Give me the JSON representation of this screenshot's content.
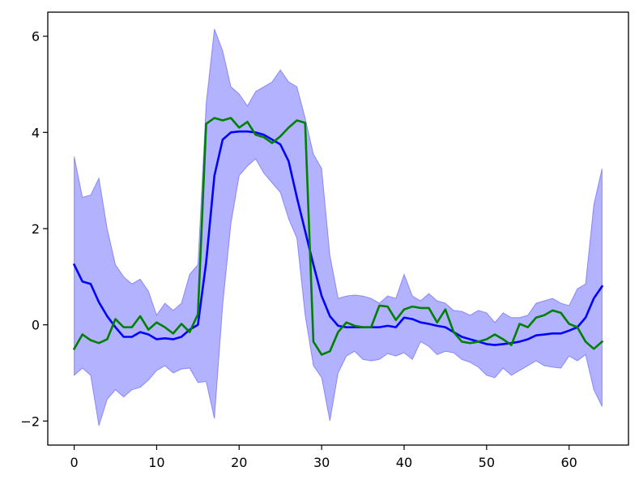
{
  "chart_data": {
    "type": "line",
    "title": "",
    "xlabel": "",
    "ylabel": "",
    "xlim": [
      -3.2,
      67.2
    ],
    "ylim": [
      -2.5,
      6.5
    ],
    "x_ticks": [
      0,
      10,
      20,
      30,
      40,
      50,
      60
    ],
    "y_ticks": [
      -2,
      0,
      2,
      4,
      6
    ],
    "x_tick_labels": [
      "0",
      "10",
      "20",
      "30",
      "40",
      "50",
      "60"
    ],
    "y_tick_labels": [
      "−2",
      "0",
      "2",
      "4",
      "6"
    ],
    "grid": false,
    "legend": "none",
    "band": {
      "color": "#0000ff",
      "alpha": 0.3,
      "upper": [
        3.5,
        2.65,
        2.7,
        3.05,
        2.0,
        1.25,
        1.0,
        0.85,
        0.95,
        0.7,
        0.2,
        0.45,
        0.3,
        0.45,
        1.05,
        1.25,
        4.6,
        6.15,
        5.7,
        4.95,
        4.8,
        4.55,
        4.85,
        4.95,
        5.05,
        5.3,
        5.05,
        4.95,
        4.3,
        3.55,
        3.25,
        1.45,
        0.55,
        0.6,
        0.62,
        0.6,
        0.55,
        0.45,
        0.6,
        0.55,
        1.05,
        0.6,
        0.5,
        0.65,
        0.5,
        0.45,
        0.3,
        0.28,
        0.2,
        0.3,
        0.25,
        0.05,
        0.25,
        0.15,
        0.15,
        0.2,
        0.45,
        0.5,
        0.55,
        0.45,
        0.4,
        0.75,
        0.85,
        2.5,
        3.25
      ],
      "lower": [
        -1.05,
        -0.9,
        -1.05,
        -2.1,
        -1.55,
        -1.35,
        -1.5,
        -1.35,
        -1.3,
        -1.15,
        -0.95,
        -0.85,
        -1.0,
        -0.92,
        -0.9,
        -1.2,
        -1.18,
        -1.95,
        0.4,
        2.1,
        3.1,
        3.3,
        3.45,
        3.15,
        2.95,
        2.75,
        2.2,
        1.8,
        0.2,
        -0.85,
        -1.1,
        -2.0,
        -1.0,
        -0.65,
        -0.55,
        -0.72,
        -0.75,
        -0.72,
        -0.6,
        -0.65,
        -0.58,
        -0.72,
        -0.35,
        -0.45,
        -0.62,
        -0.55,
        -0.58,
        -0.72,
        -0.78,
        -0.88,
        -1.05,
        -1.1,
        -0.9,
        -1.05,
        -0.95,
        -0.85,
        -0.75,
        -0.85,
        -0.88,
        -0.9,
        -0.65,
        -0.75,
        -0.62,
        -1.35,
        -1.7
      ]
    },
    "series": [
      {
        "color": "#0000ff",
        "values": [
          1.25,
          0.9,
          0.85,
          0.47,
          0.18,
          -0.05,
          -0.25,
          -0.25,
          -0.15,
          -0.2,
          -0.3,
          -0.28,
          -0.3,
          -0.25,
          -0.1,
          0.0,
          1.3,
          3.1,
          3.85,
          4.0,
          4.02,
          4.02,
          4.0,
          3.95,
          3.85,
          3.75,
          3.4,
          2.65,
          1.95,
          1.25,
          0.6,
          0.18,
          -0.02,
          -0.05,
          -0.05,
          -0.05,
          -0.05,
          -0.05,
          -0.02,
          -0.05,
          0.15,
          0.12,
          0.05,
          0.02,
          -0.02,
          -0.05,
          -0.15,
          -0.25,
          -0.3,
          -0.35,
          -0.4,
          -0.42,
          -0.4,
          -0.38,
          -0.35,
          -0.3,
          -0.22,
          -0.2,
          -0.18,
          -0.18,
          -0.12,
          -0.05,
          0.15,
          0.55,
          0.8
        ]
      },
      {
        "color": "#008000",
        "values": [
          -0.5,
          -0.2,
          -0.32,
          -0.38,
          -0.3,
          0.12,
          -0.05,
          -0.05,
          0.18,
          -0.1,
          0.05,
          -0.05,
          -0.18,
          0.02,
          -0.15,
          0.22,
          4.18,
          4.3,
          4.25,
          4.3,
          4.1,
          4.22,
          3.95,
          3.9,
          3.78,
          3.92,
          4.1,
          4.25,
          4.2,
          -0.35,
          -0.62,
          -0.55,
          -0.15,
          0.05,
          -0.02,
          -0.05,
          -0.05,
          0.4,
          0.38,
          0.1,
          0.32,
          0.38,
          0.35,
          0.35,
          0.05,
          0.32,
          -0.15,
          -0.35,
          -0.38,
          -0.35,
          -0.3,
          -0.2,
          -0.3,
          -0.42,
          0.02,
          -0.05,
          0.15,
          0.2,
          0.3,
          0.25,
          0.02,
          -0.05,
          -0.35,
          -0.5,
          -0.35
        ]
      }
    ]
  }
}
